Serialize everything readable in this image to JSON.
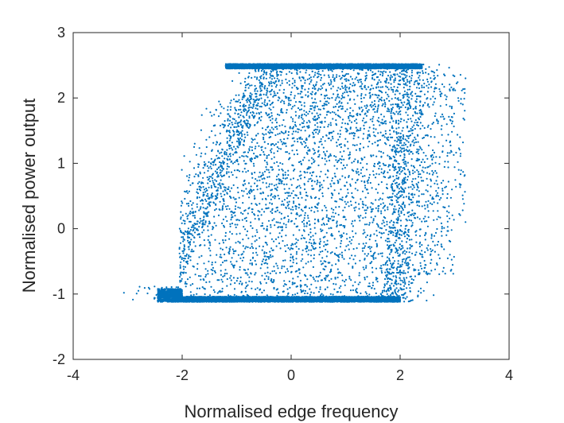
{
  "chart_data": {
    "type": "scatter",
    "title": "",
    "xlabel": "Normalised edge frequency",
    "ylabel": "Normalised power output",
    "xlim": [
      -4,
      4
    ],
    "ylim": [
      -2,
      3
    ],
    "xticks": [
      -4,
      -2,
      0,
      2,
      4
    ],
    "yticks": [
      -2,
      -1,
      0,
      1,
      2,
      3
    ],
    "xtick_labels": [
      "-4",
      "-2",
      "0",
      "2",
      "4"
    ],
    "ytick_labels": [
      "-2",
      "-1",
      "0",
      "1",
      "2",
      "3"
    ],
    "grid": false,
    "legend": "none",
    "marker_color": "#0072BD",
    "series": [
      {
        "points": [
          [
            -2.4,
            -1.1
          ],
          [
            -2.3,
            -1.0
          ],
          [
            -2.2,
            -1.05
          ],
          [
            -2.1,
            -0.95
          ],
          [
            -2.0,
            -1.0
          ],
          [
            -1.9,
            -0.5
          ],
          [
            -1.8,
            0.2
          ],
          [
            -1.7,
            0.8
          ],
          [
            -1.5,
            1.4
          ],
          [
            -1.3,
            1.9
          ],
          [
            -1.2,
            2.5
          ],
          [
            -0.8,
            2.5
          ],
          [
            0.0,
            2.5
          ],
          [
            0.8,
            2.5
          ],
          [
            1.6,
            2.5
          ],
          [
            2.3,
            2.5
          ],
          [
            2.5,
            2.0
          ],
          [
            2.6,
            1.2
          ],
          [
            2.7,
            0.5
          ],
          [
            2.7,
            -0.2
          ],
          [
            2.5,
            -0.7
          ],
          [
            2.0,
            -1.1
          ],
          [
            1.0,
            -1.1
          ],
          [
            0.0,
            -1.1
          ],
          [
            -1.0,
            -1.1
          ],
          [
            0.3,
            0.5
          ],
          [
            0.9,
            1.5
          ],
          [
            -0.5,
            0.0
          ],
          [
            1.5,
            0.3
          ],
          [
            -1.0,
            -0.5
          ],
          [
            3.2,
            2.3
          ],
          [
            3.15,
            1.9
          ],
          [
            3.1,
            1.4
          ],
          [
            2.95,
            0.6
          ],
          [
            2.85,
            -0.1
          ],
          [
            2.8,
            -0.6
          ]
        ]
      }
    ]
  }
}
